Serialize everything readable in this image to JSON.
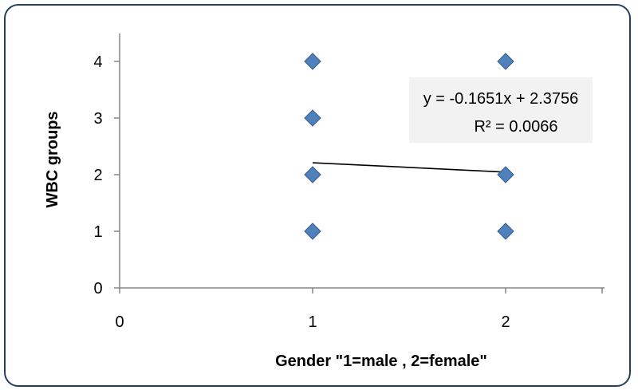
{
  "chart_data": {
    "type": "scatter",
    "title": "",
    "xlabel": "Gender \"1=male , 2=female\"",
    "ylabel": "WBC groups",
    "xlim": [
      0,
      2.5
    ],
    "ylim": [
      0,
      4.5
    ],
    "x_ticks": [
      0,
      1,
      2
    ],
    "y_ticks": [
      0,
      1,
      2,
      3,
      4
    ],
    "grid": false,
    "marker": "diamond",
    "marker_color": "#4f81bd",
    "points": [
      {
        "x": 1,
        "y": 4
      },
      {
        "x": 1,
        "y": 3
      },
      {
        "x": 1,
        "y": 2
      },
      {
        "x": 1,
        "y": 1
      },
      {
        "x": 2,
        "y": 4
      },
      {
        "x": 2,
        "y": 2
      },
      {
        "x": 2,
        "y": 1
      }
    ],
    "trendline": {
      "slope": -0.1651,
      "intercept": 2.3756,
      "x_range": [
        1,
        2
      ],
      "color": "#000000",
      "equation_label": "y = -0.1651x + 2.3756",
      "r2_label": "R² = 0.0066",
      "label_background": "#f2f2f2"
    },
    "frame_color": "#243f60"
  }
}
